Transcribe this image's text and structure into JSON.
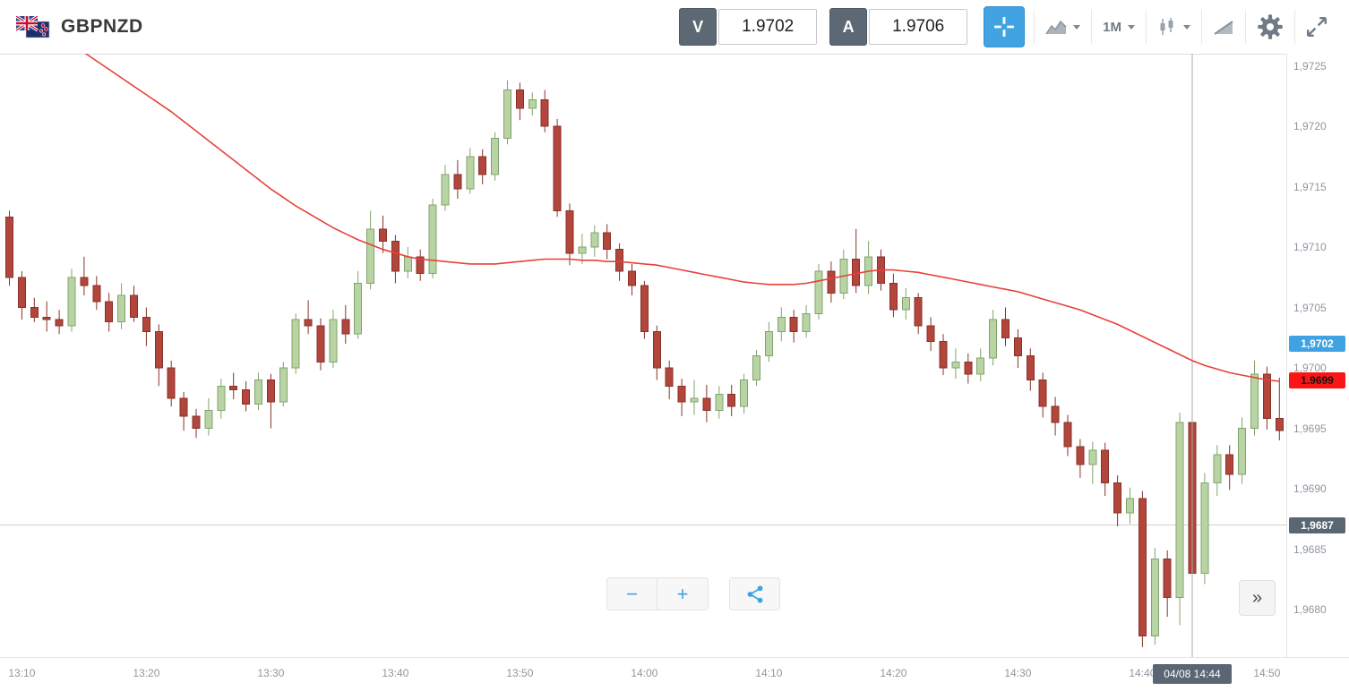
{
  "header": {
    "symbol": "GBPNZD",
    "bid": {
      "label": "V",
      "value": "1.9702"
    },
    "ask": {
      "label": "A",
      "value": "1.9706"
    },
    "timeframe": "1M"
  },
  "icons": {
    "flag": "gb-nz-flags",
    "crosshair": "crosshair",
    "chart_type": "area-chart",
    "candle_style": "candlesticks",
    "indicators": "trend-ramp",
    "settings": "gear",
    "fullscreen": "expand-arrows",
    "share": "share-nodes"
  },
  "controls": {
    "zoom_out": "−",
    "zoom_in": "+",
    "collapse": "»"
  },
  "badges": {
    "bid": {
      "text": "1,9702",
      "price": 1.9702,
      "bg": "#3fa3e3",
      "fg": "#ffffff"
    },
    "last": {
      "text": "1.9699",
      "price": 1.9699,
      "bg": "#fb1515",
      "fg": "#1d1010"
    },
    "level": {
      "text": "1,9687",
      "price": 1.9687,
      "bg": "#5a6673",
      "fg": "#ffffff"
    },
    "time": {
      "text": "04/08 14:44",
      "index": 95,
      "bg": "#5a6673",
      "fg": "#ffffff"
    }
  },
  "chart_data": {
    "type": "candlestick",
    "title": "GBPNZD",
    "timeframe": "1M",
    "start_time": "13:09",
    "interval_minutes": 1,
    "ylim": [
      1.9676,
      1.9726
    ],
    "x_offset": 6,
    "x_step": 13.9,
    "candle_width": 9,
    "grid_level": 1.9687,
    "crosshair_index": 95,
    "crosshair_label": "04/08 14:44",
    "price_ticks": [
      {
        "value": 1.968,
        "label": "1,9680"
      },
      {
        "value": 1.9685,
        "label": "1,9685"
      },
      {
        "value": 1.969,
        "label": "1,9690"
      },
      {
        "value": 1.9695,
        "label": "1,9695"
      },
      {
        "value": 1.97,
        "label": "1,9700"
      },
      {
        "value": 1.9705,
        "label": "1,9705"
      },
      {
        "value": 1.971,
        "label": "1,9710"
      },
      {
        "value": 1.9715,
        "label": "1,9715"
      },
      {
        "value": 1.972,
        "label": "1,9720"
      },
      {
        "value": 1.9725,
        "label": "1,9725"
      }
    ],
    "time_ticks": [
      {
        "index": 1,
        "label": "13:10"
      },
      {
        "index": 11,
        "label": "13:20"
      },
      {
        "index": 21,
        "label": "13:30"
      },
      {
        "index": 31,
        "label": "13:40"
      },
      {
        "index": 41,
        "label": "13:50"
      },
      {
        "index": 51,
        "label": "14:00"
      },
      {
        "index": 61,
        "label": "14:10"
      },
      {
        "index": 71,
        "label": "14:20"
      },
      {
        "index": 81,
        "label": "14:30"
      },
      {
        "index": 91,
        "label": "14:40"
      },
      {
        "index": 101,
        "label": "14:50"
      }
    ],
    "colors": {
      "up_fill": "#b9d4a4",
      "up_stroke": "#82a36c",
      "down_fill": "#b2463c",
      "down_stroke": "#873228",
      "ma": "#e8403a",
      "grid": "#cfcfcf",
      "crosshair": "#a9a9a9"
    },
    "candles": [
      [
        1.97125,
        1.9713,
        1.97068,
        1.97075
      ],
      [
        1.97075,
        1.9708,
        1.9704,
        1.9705
      ],
      [
        1.9705,
        1.97058,
        1.97038,
        1.97042
      ],
      [
        1.97042,
        1.97055,
        1.9703,
        1.9704
      ],
      [
        1.9704,
        1.97048,
        1.97028,
        1.97035
      ],
      [
        1.97035,
        1.97082,
        1.9703,
        1.97075
      ],
      [
        1.97075,
        1.97092,
        1.9706,
        1.97068
      ],
      [
        1.97068,
        1.97076,
        1.97048,
        1.97055
      ],
      [
        1.97055,
        1.97062,
        1.9703,
        1.97038
      ],
      [
        1.97038,
        1.9707,
        1.97032,
        1.9706
      ],
      [
        1.9706,
        1.97068,
        1.97038,
        1.97042
      ],
      [
        1.97042,
        1.9705,
        1.97018,
        1.9703
      ],
      [
        1.9703,
        1.97036,
        1.96985,
        1.97
      ],
      [
        1.97,
        1.97006,
        1.96968,
        1.96975
      ],
      [
        1.96975,
        1.9698,
        1.96948,
        1.9696
      ],
      [
        1.9696,
        1.96966,
        1.96942,
        1.9695
      ],
      [
        1.9695,
        1.96975,
        1.96944,
        1.96965
      ],
      [
        1.96965,
        1.96991,
        1.96958,
        1.96985
      ],
      [
        1.96985,
        1.96996,
        1.96974,
        1.96982
      ],
      [
        1.96982,
        1.96989,
        1.96964,
        1.9697
      ],
      [
        1.9697,
        1.96996,
        1.96965,
        1.9699
      ],
      [
        1.9699,
        1.96995,
        1.9695,
        1.96972
      ],
      [
        1.96972,
        1.97005,
        1.96968,
        1.97
      ],
      [
        1.97,
        1.97045,
        1.96995,
        1.9704
      ],
      [
        1.9704,
        1.97056,
        1.97028,
        1.97035
      ],
      [
        1.97035,
        1.97041,
        1.96998,
        1.97005
      ],
      [
        1.97005,
        1.97048,
        1.97,
        1.9704
      ],
      [
        1.9704,
        1.97052,
        1.9702,
        1.97028
      ],
      [
        1.97028,
        1.9708,
        1.97024,
        1.9707
      ],
      [
        1.9707,
        1.9713,
        1.97065,
        1.97115
      ],
      [
        1.97115,
        1.97126,
        1.97095,
        1.97105
      ],
      [
        1.97105,
        1.9711,
        1.9707,
        1.9708
      ],
      [
        1.9708,
        1.971,
        1.97074,
        1.97092
      ],
      [
        1.97092,
        1.97098,
        1.97072,
        1.97078
      ],
      [
        1.97078,
        1.9714,
        1.97074,
        1.97135
      ],
      [
        1.97135,
        1.97168,
        1.9713,
        1.9716
      ],
      [
        1.9716,
        1.97172,
        1.9714,
        1.97148
      ],
      [
        1.97148,
        1.97182,
        1.97144,
        1.97175
      ],
      [
        1.97175,
        1.97181,
        1.97152,
        1.9716
      ],
      [
        1.9716,
        1.97195,
        1.97155,
        1.9719
      ],
      [
        1.9719,
        1.97238,
        1.97185,
        1.9723
      ],
      [
        1.9723,
        1.97236,
        1.97205,
        1.97215
      ],
      [
        1.97215,
        1.97228,
        1.97209,
        1.97222
      ],
      [
        1.97222,
        1.9723,
        1.97195,
        1.972
      ],
      [
        1.972,
        1.97206,
        1.97125,
        1.9713
      ],
      [
        1.9713,
        1.97136,
        1.97085,
        1.97095
      ],
      [
        1.97095,
        1.97111,
        1.97086,
        1.971
      ],
      [
        1.971,
        1.97118,
        1.97092,
        1.97112
      ],
      [
        1.97112,
        1.97119,
        1.9709,
        1.97098
      ],
      [
        1.97098,
        1.97103,
        1.97072,
        1.9708
      ],
      [
        1.9708,
        1.97086,
        1.9706,
        1.97068
      ],
      [
        1.97068,
        1.97072,
        1.97024,
        1.9703
      ],
      [
        1.9703,
        1.97035,
        1.9699,
        1.97
      ],
      [
        1.97,
        1.97006,
        1.96974,
        1.96985
      ],
      [
        1.96985,
        1.96991,
        1.9696,
        1.96972
      ],
      [
        1.96972,
        1.9699,
        1.96961,
        1.96975
      ],
      [
        1.96975,
        1.96986,
        1.96955,
        1.96965
      ],
      [
        1.96965,
        1.96985,
        1.96958,
        1.96978
      ],
      [
        1.96978,
        1.96986,
        1.9696,
        1.96968
      ],
      [
        1.96968,
        1.96995,
        1.96962,
        1.9699
      ],
      [
        1.9699,
        1.97015,
        1.96985,
        1.9701
      ],
      [
        1.9701,
        1.97038,
        1.97005,
        1.9703
      ],
      [
        1.9703,
        1.9705,
        1.97022,
        1.97042
      ],
      [
        1.97042,
        1.97048,
        1.97021,
        1.9703
      ],
      [
        1.9703,
        1.97052,
        1.97025,
        1.97045
      ],
      [
        1.97045,
        1.97086,
        1.9704,
        1.9708
      ],
      [
        1.9708,
        1.97088,
        1.97054,
        1.97062
      ],
      [
        1.97062,
        1.97098,
        1.97057,
        1.9709
      ],
      [
        1.9709,
        1.97115,
        1.97062,
        1.97068
      ],
      [
        1.97068,
        1.97105,
        1.97061,
        1.97092
      ],
      [
        1.97092,
        1.97098,
        1.97064,
        1.9707
      ],
      [
        1.9707,
        1.97078,
        1.97042,
        1.97048
      ],
      [
        1.97048,
        1.97066,
        1.9704,
        1.97058
      ],
      [
        1.97058,
        1.97062,
        1.97028,
        1.97035
      ],
      [
        1.97035,
        1.97042,
        1.97014,
        1.97022
      ],
      [
        1.97022,
        1.97028,
        1.96994,
        1.97
      ],
      [
        1.97,
        1.97016,
        1.96991,
        1.97005
      ],
      [
        1.97005,
        1.97012,
        1.96987,
        1.96995
      ],
      [
        1.96995,
        1.97016,
        1.96989,
        1.97008
      ],
      [
        1.97008,
        1.97048,
        1.97002,
        1.9704
      ],
      [
        1.9704,
        1.9705,
        1.97018,
        1.97025
      ],
      [
        1.97025,
        1.97032,
        1.97,
        1.9701
      ],
      [
        1.9701,
        1.97016,
        1.96981,
        1.9699
      ],
      [
        1.9699,
        1.96996,
        1.96959,
        1.96968
      ],
      [
        1.96968,
        1.96976,
        1.96944,
        1.96955
      ],
      [
        1.96955,
        1.96961,
        1.96927,
        1.96935
      ],
      [
        1.96935,
        1.96941,
        1.96909,
        1.9692
      ],
      [
        1.9692,
        1.96939,
        1.96904,
        1.96932
      ],
      [
        1.96932,
        1.96938,
        1.96894,
        1.96905
      ],
      [
        1.96905,
        1.96911,
        1.96869,
        1.9688
      ],
      [
        1.9688,
        1.96901,
        1.96871,
        1.96892
      ],
      [
        1.96892,
        1.96898,
        1.96769,
        1.96778
      ],
      [
        1.96778,
        1.96851,
        1.96771,
        1.96842
      ],
      [
        1.96842,
        1.96849,
        1.96794,
        1.9681
      ],
      [
        1.9681,
        1.96963,
        1.96787,
        1.96955
      ],
      [
        1.96955,
        1.96961,
        1.96818,
        1.9683
      ],
      [
        1.9683,
        1.96913,
        1.96821,
        1.96905
      ],
      [
        1.96905,
        1.96936,
        1.96894,
        1.96928
      ],
      [
        1.96928,
        1.96936,
        1.96899,
        1.96912
      ],
      [
        1.96912,
        1.96959,
        1.96904,
        1.9695
      ],
      [
        1.9695,
        1.97006,
        1.96944,
        1.96995
      ],
      [
        1.96995,
        1.97001,
        1.96949,
        1.96958
      ],
      [
        1.96958,
        1.96992,
        1.9694,
        1.96948
      ]
    ],
    "ma": [
      1.9731,
      1.97301,
      1.97292,
      1.97284,
      1.97276,
      1.97268,
      1.97261,
      1.97254,
      1.97247,
      1.9724,
      1.97233,
      1.97226,
      1.97219,
      1.97212,
      1.97204,
      1.97196,
      1.97188,
      1.9718,
      1.97172,
      1.97164,
      1.97156,
      1.97148,
      1.97141,
      1.97134,
      1.97128,
      1.97122,
      1.97116,
      1.97111,
      1.97106,
      1.97102,
      1.97098,
      1.97095,
      1.97092,
      1.9709,
      1.97089,
      1.97088,
      1.97087,
      1.97086,
      1.97086,
      1.97086,
      1.97087,
      1.97088,
      1.97089,
      1.9709,
      1.9709,
      1.9709,
      1.97089,
      1.97089,
      1.97088,
      1.97088,
      1.97087,
      1.97086,
      1.97085,
      1.97083,
      1.97081,
      1.97079,
      1.97077,
      1.97075,
      1.97073,
      1.97071,
      1.9707,
      1.97069,
      1.97069,
      1.97069,
      1.9707,
      1.97072,
      1.97074,
      1.97076,
      1.97078,
      1.9708,
      1.97081,
      1.97081,
      1.9708,
      1.97079,
      1.97077,
      1.97075,
      1.97073,
      1.97071,
      1.97069,
      1.97067,
      1.97065,
      1.97063,
      1.9706,
      1.97057,
      1.97054,
      1.97051,
      1.97048,
      1.97044,
      1.9704,
      1.97036,
      1.97031,
      1.97026,
      1.97021,
      1.97016,
      1.97011,
      1.97006,
      1.97002,
      1.96999,
      1.96996,
      1.96994,
      1.96992,
      1.9699,
      1.96989
    ]
  }
}
